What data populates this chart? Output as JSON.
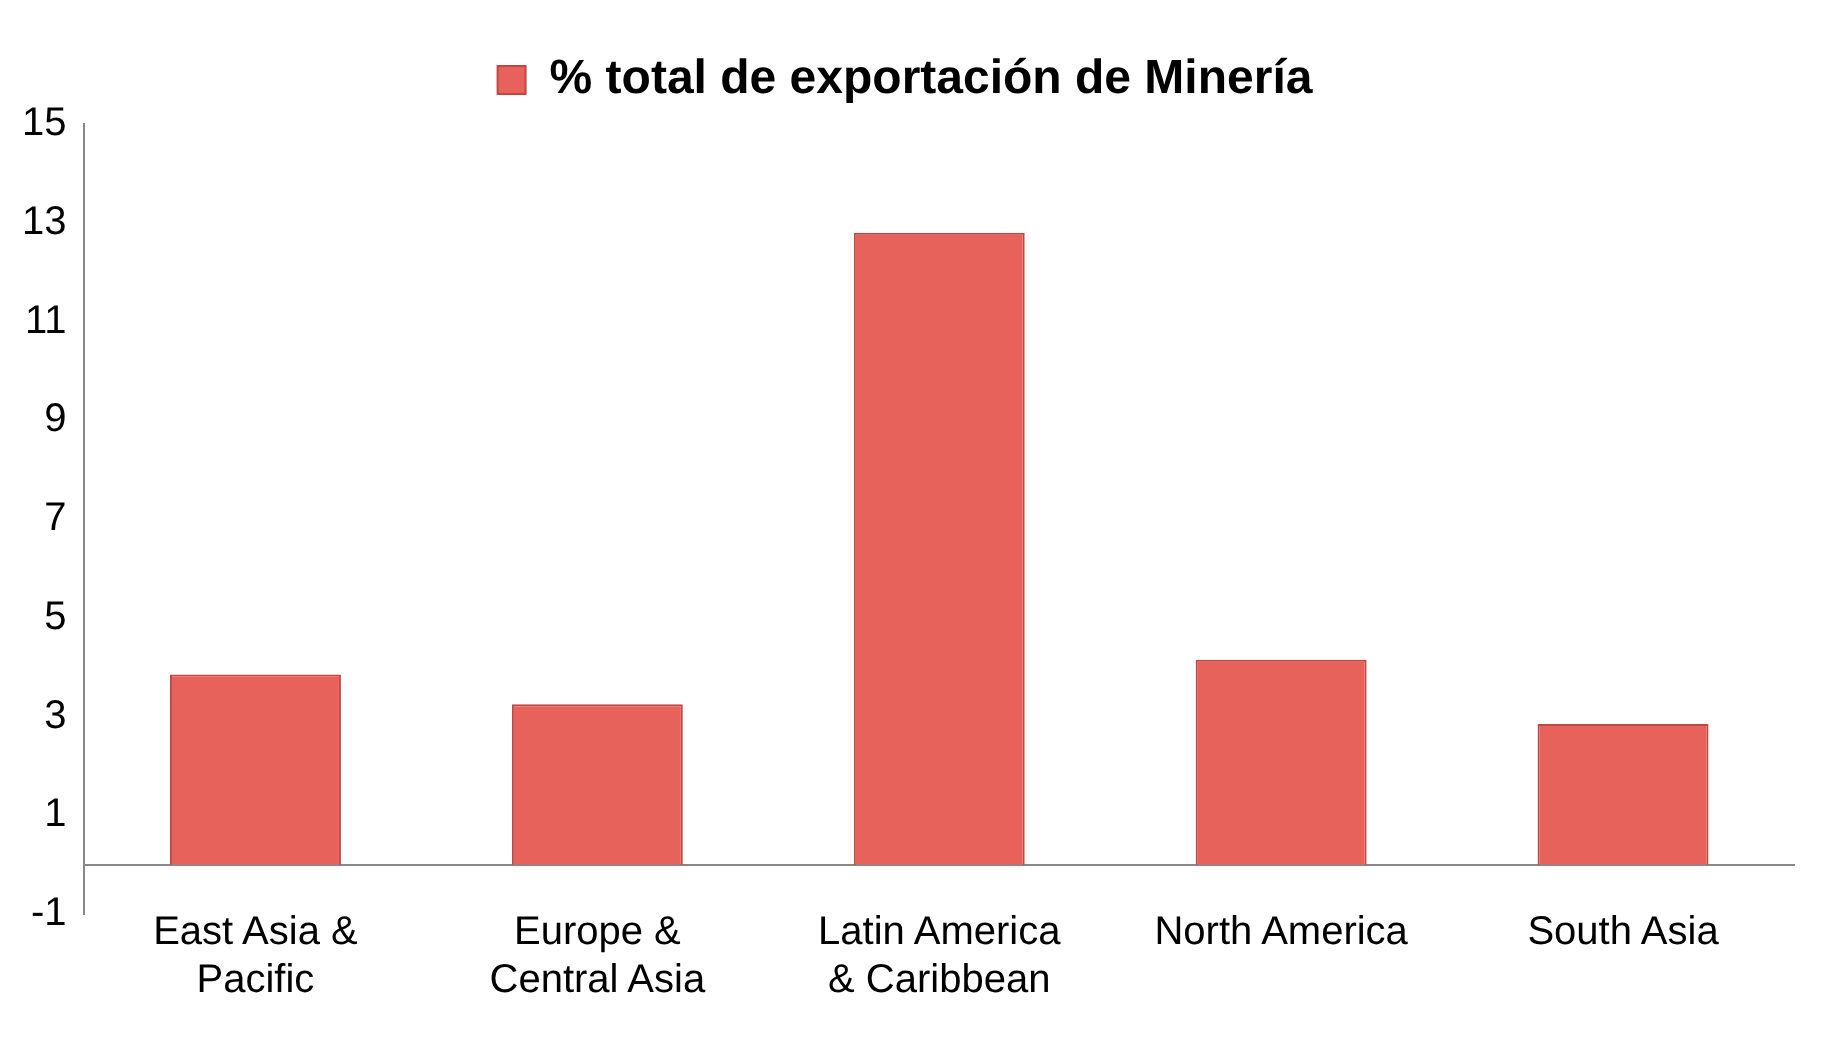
{
  "chart_data": {
    "type": "bar",
    "categories": [
      "East Asia & Pacific",
      "Europe & Central Asia",
      "Latin America & Caribbean",
      "North America",
      "South Asia"
    ],
    "series": [
      {
        "name": "% total de exportación de Minería",
        "color": "#e8625c",
        "values": [
          3.85,
          3.25,
          12.8,
          4.15,
          2.85
        ]
      }
    ],
    "ylim": [
      -1,
      15
    ],
    "yticks": [
      -1,
      1,
      3,
      5,
      7,
      9,
      11,
      13,
      15
    ],
    "grid": false,
    "legend": "top"
  }
}
